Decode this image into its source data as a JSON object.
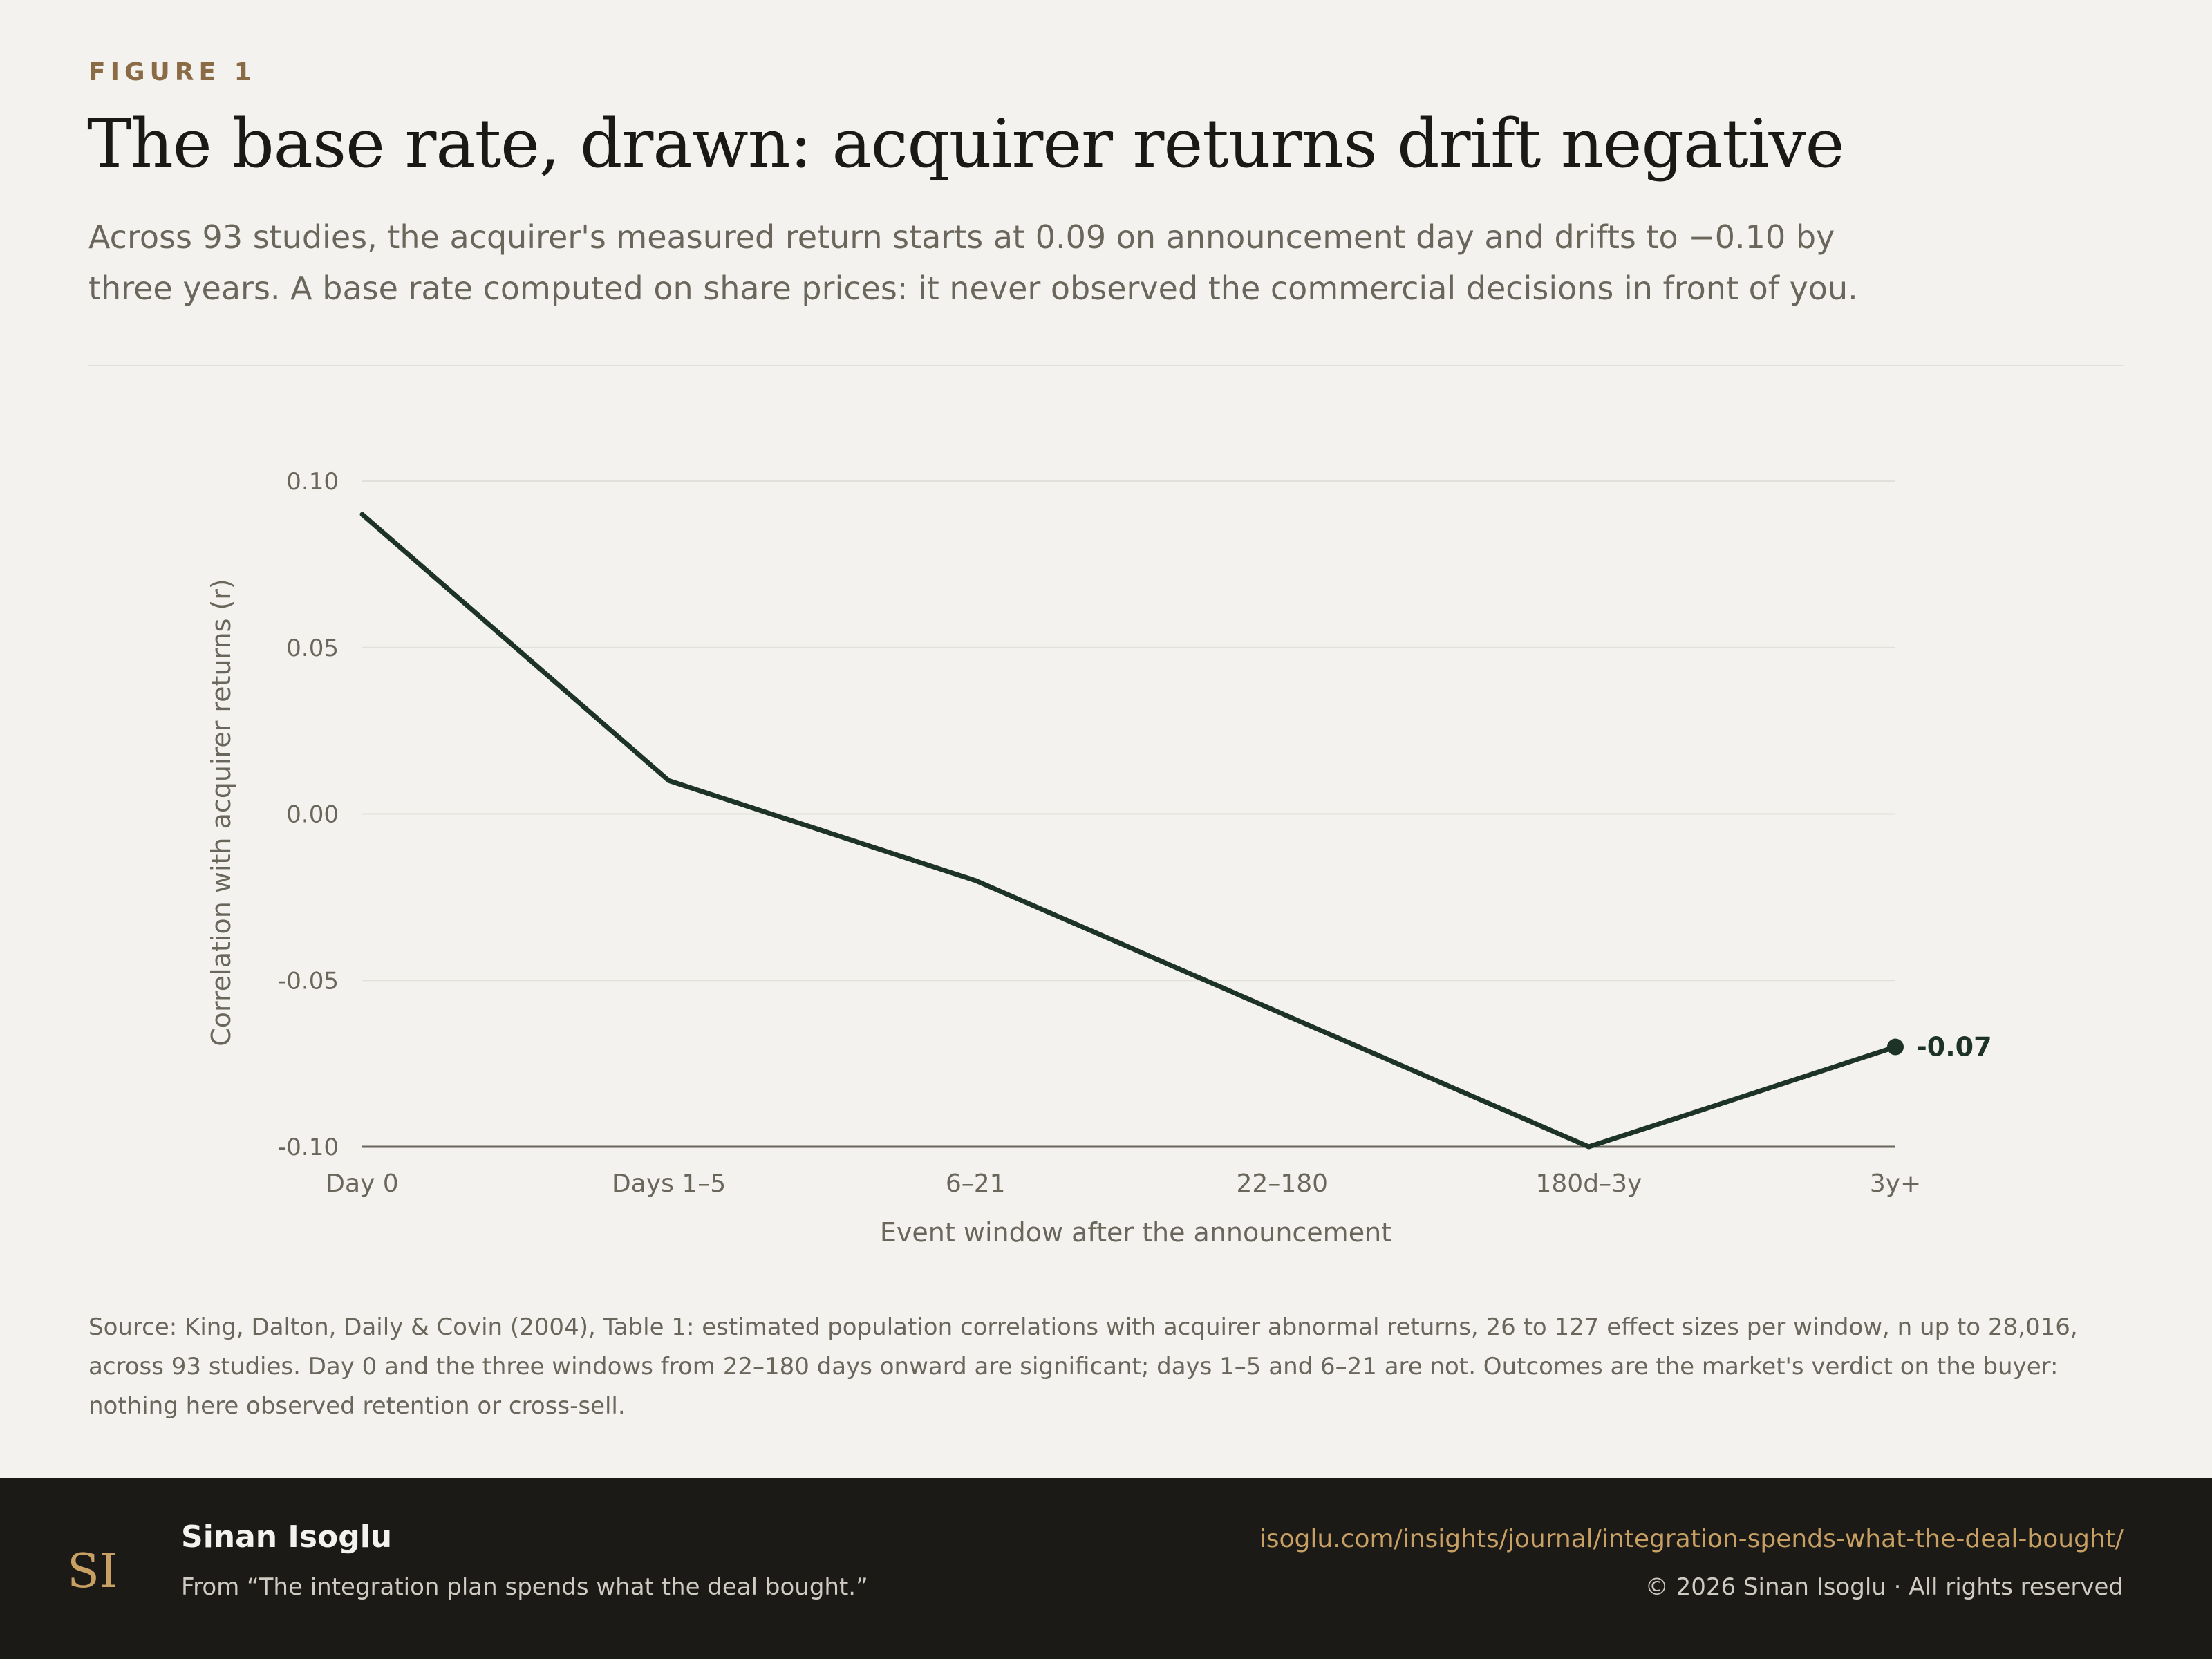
{
  "header": {
    "eyebrow": "FIGURE 1",
    "title": "The base rate, drawn: acquirer returns drift negative",
    "subtitle": "Across 93 studies, the acquirer's measured return starts at 0.09 on announcement day and drifts to −0.10 by three years. A base rate computed on share prices: it never observed the commercial decisions in front of you."
  },
  "chart_data": {
    "type": "line",
    "title": "",
    "xlabel": "Event window after the announcement",
    "ylabel": "Correlation with acquirer returns (r)",
    "categories": [
      "Day 0",
      "Days 1–5",
      "6–21",
      "22–180",
      "180d–3y",
      "3y+"
    ],
    "series": [
      {
        "name": "",
        "values": [
          0.09,
          0.01,
          -0.02,
          -0.06,
          -0.1,
          -0.07
        ],
        "color": "#1e3328"
      }
    ],
    "ylim": [
      -0.1,
      0.1
    ],
    "yticks": [
      0.1,
      0.05,
      0.0,
      -0.05,
      -0.1
    ],
    "ytick_labels": [
      "0.10",
      "0.05",
      "0.00",
      "-0.05",
      "-0.10"
    ],
    "end_label": "-0.07",
    "grid": true,
    "legend": "none"
  },
  "source": {
    "text": "Source: King, Dalton, Daily & Covin (2004), Table 1: estimated population correlations with acquirer abnormal returns, 26 to 127 effect sizes per window, n up to 28,016, across 93 studies. Day 0 and the three windows from 22–180 days onward are significant; days 1–5 and 6–21 are not. Outcomes are the market's verdict on the buyer: nothing here observed retention or cross-sell."
  },
  "footer": {
    "logo_text": "SI",
    "author": "Sinan Isoglu",
    "from": "From “The integration plan spends what the deal bought.”",
    "url": "isoglu.com/insights/journal/integration-spends-what-the-deal-bought/",
    "copyright": "© 2026 Sinan Isoglu · All rights reserved"
  },
  "colors": {
    "background": "#f3f2ee",
    "line": "#1e3328",
    "accent": "#8b6b45",
    "footer_bg": "#1b1a16",
    "footer_link": "#c9a063",
    "gridline": "#e2e0da",
    "muted_text": "#6b665c"
  }
}
